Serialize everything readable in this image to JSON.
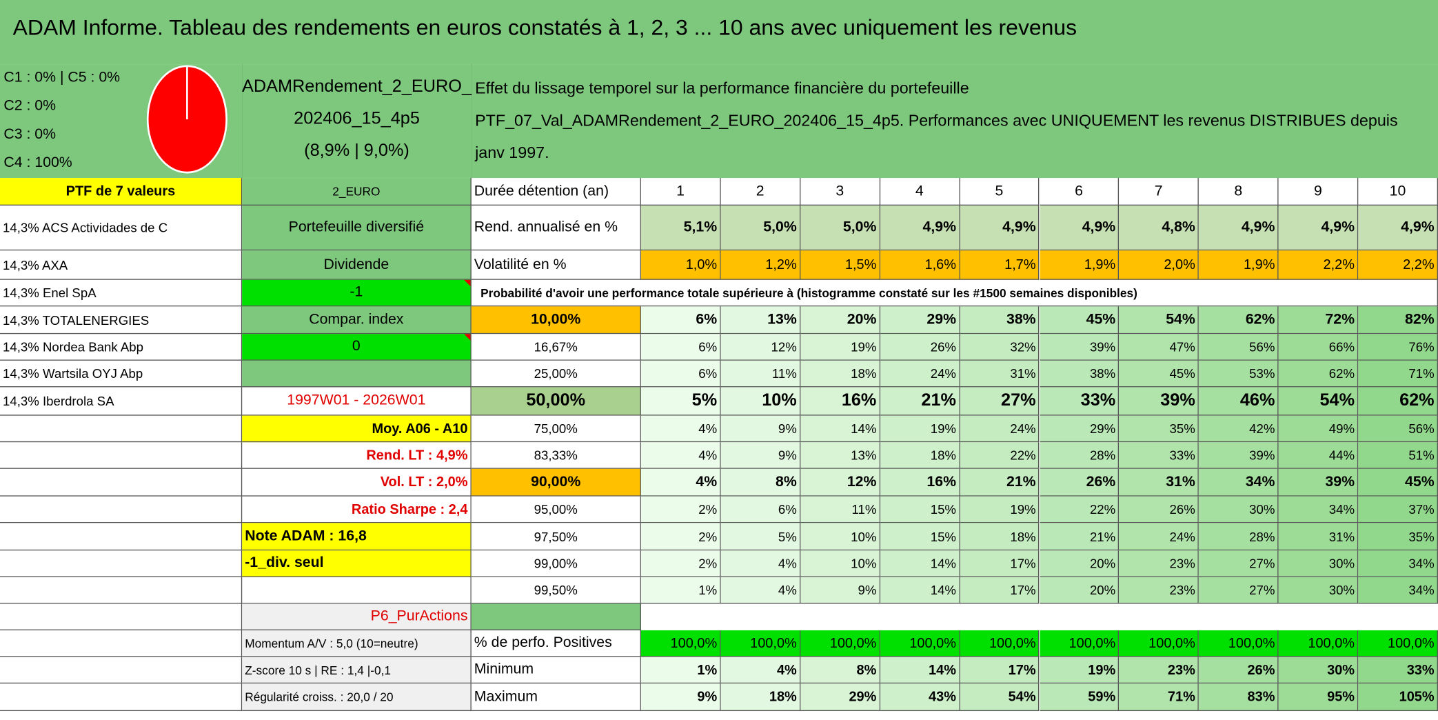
{
  "header": {
    "title": "ADAM Informe. Tableau des rendements en euros constatés à 1, 2, 3 ... 10 ans avec uniquement les revenus"
  },
  "allocation_legend": [
    "C1 : 0% | C5 : 0%",
    "C2 : 0%",
    "C3 : 0%",
    "C4 : 100%"
  ],
  "portfolio_name": [
    "ADAMRendement_2_EURO_",
    "202406_15_4p5",
    "(8,9% | 9,0%)"
  ],
  "description": [
    "Effet du lissage temporel sur la performance financière du portefeuille",
    "PTF_07_Val_ADAMRendement_2_EURO_202406_15_4p5. Performances avec UNIQUEMENT les revenus DISTRIBUES depuis",
    "janv 1997."
  ],
  "holdings": {
    "header": "PTF de 7 valeurs",
    "items": [
      "14,3% ACS Actividades de C",
      "14,3% AXA",
      "14,3% Enel SpA",
      "14,3% TOTALENERGIES",
      "14,3% Nordea Bank Abp",
      "14,3% Wartsila OYJ Abp",
      "14,3% Iberdrola SA"
    ]
  },
  "settings": {
    "currency": "2_EURO",
    "profile": "Portefeuille diversifié",
    "mode": "Dividende",
    "mode_value": "-1",
    "index_label": "Compar. index",
    "index_value": "0",
    "period": "1997W01 - 2026W01",
    "average": "Moy. A06 - A10",
    "long_term_return": "Rend. LT : 4,9%",
    "long_term_volatility": "Vol. LT : 2,0%",
    "sharpe": "Ratio Sharpe : 2,4",
    "adam_score": "Note ADAM : 16,8",
    "dividend_only": "-1_div. seul",
    "style": "P6_PurActions",
    "momentum": "Momentum A/V : 5,0 (10=neutre)",
    "zscore": "Z-score 10 s | RE : 1,4 |-0,1",
    "regularity": "Régularité croiss. : 20,0 / 20"
  },
  "table": {
    "duration_label": "Durée détention (an)",
    "durations": [
      "1",
      "2",
      "3",
      "4",
      "5",
      "6",
      "7",
      "8",
      "9",
      "10"
    ],
    "return_row": {
      "label": "Rend. annualisé en %",
      "values": [
        "5,1%",
        "5,0%",
        "5,0%",
        "4,9%",
        "4,9%",
        "4,9%",
        "4,8%",
        "4,9%",
        "4,9%",
        "4,9%"
      ]
    },
    "volatility_row": {
      "label": "Volatilité en %",
      "values": [
        "1,0%",
        "1,2%",
        "1,5%",
        "1,6%",
        "1,7%",
        "1,9%",
        "2,0%",
        "1,9%",
        "2,2%",
        "2,2%"
      ]
    },
    "probability_title": "Probabilité d'avoir une performance totale supérieure à (histogramme constaté sur les #1500 semaines disponibles)",
    "probability_rows": [
      {
        "threshold": "10,00%",
        "values": [
          "6%",
          "13%",
          "20%",
          "29%",
          "38%",
          "45%",
          "54%",
          "62%",
          "72%",
          "82%"
        ]
      },
      {
        "threshold": "16,67%",
        "values": [
          "6%",
          "12%",
          "19%",
          "26%",
          "32%",
          "39%",
          "47%",
          "56%",
          "66%",
          "76%"
        ]
      },
      {
        "threshold": "25,00%",
        "values": [
          "6%",
          "11%",
          "18%",
          "24%",
          "31%",
          "38%",
          "45%",
          "53%",
          "62%",
          "71%"
        ]
      },
      {
        "threshold": "50,00%",
        "values": [
          "5%",
          "10%",
          "16%",
          "21%",
          "27%",
          "33%",
          "39%",
          "46%",
          "54%",
          "62%"
        ]
      },
      {
        "threshold": "75,00%",
        "values": [
          "4%",
          "9%",
          "14%",
          "19%",
          "24%",
          "29%",
          "35%",
          "42%",
          "49%",
          "56%"
        ]
      },
      {
        "threshold": "83,33%",
        "values": [
          "4%",
          "9%",
          "13%",
          "18%",
          "22%",
          "28%",
          "33%",
          "39%",
          "44%",
          "51%"
        ]
      },
      {
        "threshold": "90,00%",
        "values": [
          "4%",
          "8%",
          "12%",
          "16%",
          "21%",
          "26%",
          "31%",
          "34%",
          "39%",
          "45%"
        ]
      },
      {
        "threshold": "95,00%",
        "values": [
          "2%",
          "6%",
          "11%",
          "15%",
          "19%",
          "22%",
          "26%",
          "30%",
          "34%",
          "37%"
        ]
      },
      {
        "threshold": "97,50%",
        "values": [
          "2%",
          "5%",
          "10%",
          "15%",
          "18%",
          "21%",
          "24%",
          "28%",
          "31%",
          "35%"
        ]
      },
      {
        "threshold": "99,00%",
        "values": [
          "2%",
          "4%",
          "10%",
          "14%",
          "17%",
          "20%",
          "23%",
          "27%",
          "30%",
          "34%"
        ]
      },
      {
        "threshold": "99,50%",
        "values": [
          "1%",
          "4%",
          "9%",
          "14%",
          "17%",
          "20%",
          "23%",
          "27%",
          "30%",
          "34%"
        ]
      }
    ],
    "positive_row": {
      "label": "% de perfo. Positives",
      "values": [
        "100,0%",
        "100,0%",
        "100,0%",
        "100,0%",
        "100,0%",
        "100,0%",
        "100,0%",
        "100,0%",
        "100,0%",
        "100,0%"
      ]
    },
    "minimum_row": {
      "label": "Minimum",
      "values": [
        "1%",
        "4%",
        "8%",
        "14%",
        "17%",
        "19%",
        "23%",
        "26%",
        "30%",
        "33%"
      ]
    },
    "maximum_row": {
      "label": "Maximum",
      "values": [
        "9%",
        "18%",
        "29%",
        "43%",
        "54%",
        "59%",
        "71%",
        "83%",
        "95%",
        "105%"
      ]
    }
  }
}
